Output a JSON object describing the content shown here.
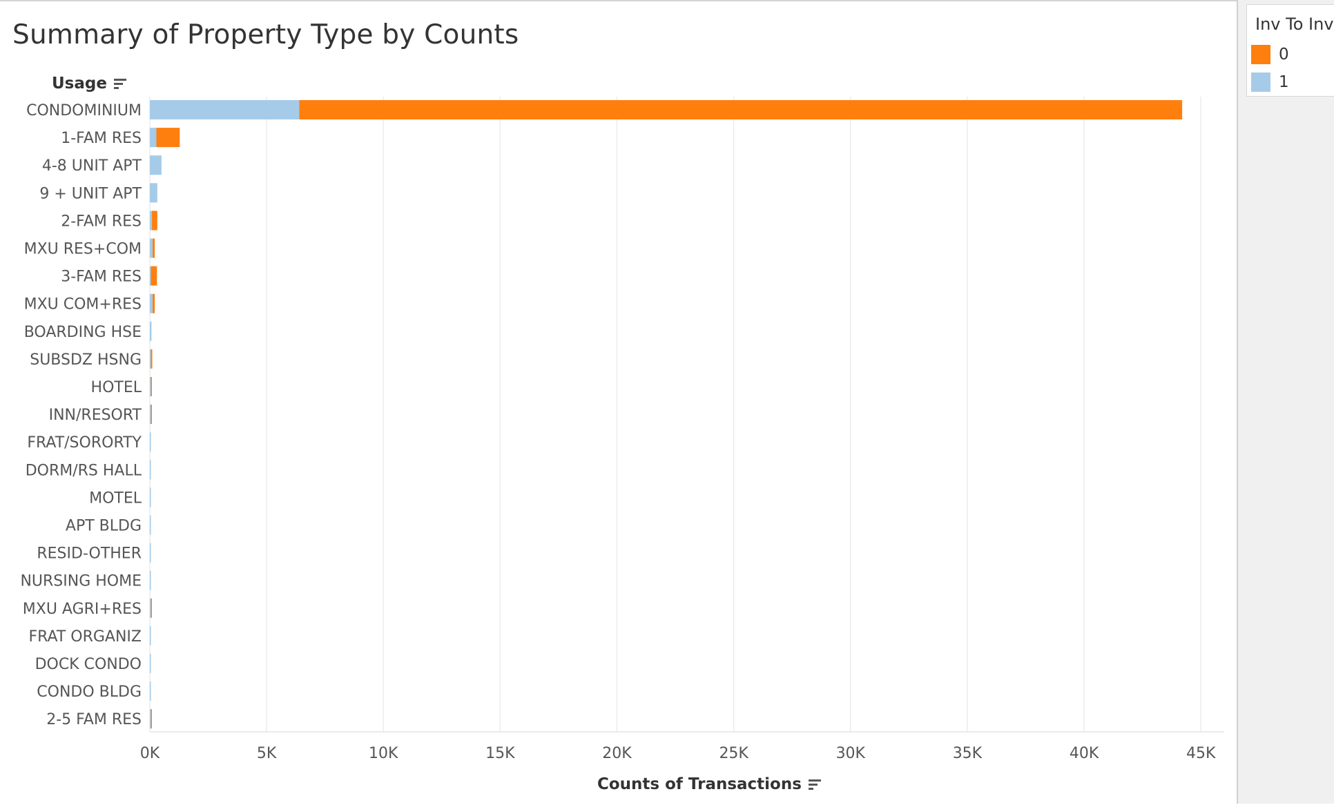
{
  "chart_data": {
    "type": "bar",
    "orientation": "horizontal",
    "stacked": true,
    "title": "Summary of Property Type by Counts",
    "ylabel": "Usage",
    "xlabel": "Counts of Transactions",
    "xlim": [
      0,
      46000
    ],
    "xticks": [
      0,
      5000,
      10000,
      15000,
      20000,
      25000,
      30000,
      35000,
      40000,
      45000
    ],
    "xtick_labels": [
      "0K",
      "5K",
      "10K",
      "15K",
      "20K",
      "25K",
      "30K",
      "35K",
      "40K",
      "45K"
    ],
    "grid": "vertical",
    "legend": {
      "title": "Inv To Inv",
      "position": "right"
    },
    "categories": [
      "CONDOMINIUM",
      "1-FAM RES",
      "4-8 UNIT APT",
      "9 + UNIT APT",
      "2-FAM RES",
      "MXU RES+COM",
      "3-FAM RES",
      "MXU COM+RES",
      "BOARDING HSE",
      "SUBSDZ HSNG",
      "HOTEL",
      "INN/RESORT",
      "FRAT/SORORTY",
      "DORM/RS HALL",
      "MOTEL",
      "APT BLDG",
      "RESID-OTHER",
      "NURSING HOME",
      "MXU AGRI+RES",
      "FRAT ORGANIZ",
      "DOCK CONDO",
      "CONDO BLDG",
      "2-5 FAM RES"
    ],
    "series": [
      {
        "name": "1",
        "color": "#a5cbe8",
        "values": [
          6400,
          280,
          500,
          320,
          90,
          120,
          30,
          120,
          70,
          20,
          5,
          10,
          40,
          30,
          30,
          20,
          20,
          20,
          5,
          15,
          15,
          20,
          5
        ]
      },
      {
        "name": "0",
        "color": "#ff7f0e",
        "values": [
          37800,
          1000,
          0,
          0,
          230,
          90,
          260,
          90,
          0,
          60,
          30,
          40,
          0,
          0,
          0,
          0,
          0,
          0,
          40,
          0,
          0,
          0,
          40
        ]
      }
    ]
  },
  "colors": {
    "gridline": "#ececec",
    "axis_line": "#e3e3e3",
    "panel_bg": "#f0f0f0"
  }
}
